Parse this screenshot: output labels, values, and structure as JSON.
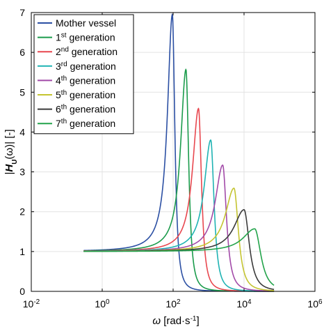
{
  "chart_data": {
    "type": "line",
    "xscale": "log",
    "xlim": [
      0.01,
      1000000
    ],
    "ylim": [
      0,
      7
    ],
    "grid": true,
    "legend_placement": "top-left",
    "xlabel": {
      "symbol": "ω",
      "text": " [rad·s",
      "sup": "-1",
      "close": "]"
    },
    "ylabel": {
      "open": "|",
      "main": "H",
      "sub": "U",
      "rest": "(ω)| [-]"
    },
    "x_tick_labels": [
      {
        "base": "10",
        "exp": "-2",
        "value": 0.01
      },
      {
        "base": "10",
        "exp": "0",
        "value": 1
      },
      {
        "base": "10",
        "exp": "2",
        "value": 100
      },
      {
        "base": "10",
        "exp": "4",
        "value": 10000
      },
      {
        "base": "10",
        "exp": "6",
        "value": 1000000
      }
    ],
    "y_tick_labels": [
      "0",
      "1",
      "2",
      "3",
      "4",
      "5",
      "6",
      "7"
    ],
    "y_ticks": [
      0,
      1,
      2,
      3,
      4,
      5,
      6,
      7
    ],
    "x_range": [
      0.3,
      70000
    ],
    "series": [
      {
        "name": {
          "pre": "Mother vessel",
          "sup": "",
          "post": ""
        },
        "color": "#2b4fa3",
        "peak_x": 95,
        "peak_y": 6.95,
        "width": 0.165
      },
      {
        "name": {
          "pre": "1",
          "sup": "st",
          "post": " generation"
        },
        "color": "#1a9b4b",
        "peak_x": 230,
        "peak_y": 5.57,
        "width": 0.18
      },
      {
        "name": {
          "pre": "2",
          "sup": "nd",
          "post": " generation"
        },
        "color": "#e8474f",
        "peak_x": 520,
        "peak_y": 4.59,
        "width": 0.2
      },
      {
        "name": {
          "pre": "3",
          "sup": "rd",
          "post": " generation"
        },
        "color": "#1fb3b3",
        "peak_x": 1150,
        "peak_y": 3.8,
        "width": 0.22
      },
      {
        "name": {
          "pre": "4",
          "sup": "th",
          "post": " generation"
        },
        "color": "#a24aa8",
        "peak_x": 2500,
        "peak_y": 3.17,
        "width": 0.25
      },
      {
        "name": {
          "pre": "5",
          "sup": "th",
          "post": " generation"
        },
        "color": "#c4c430",
        "peak_x": 5200,
        "peak_y": 2.59,
        "width": 0.29
      },
      {
        "name": {
          "pre": "6",
          "sup": "th",
          "post": " generation"
        },
        "color": "#3a3a3a",
        "peak_x": 10000,
        "peak_y": 2.05,
        "width": 0.34
      },
      {
        "name": {
          "pre": "7",
          "sup": "th",
          "post": " generation"
        },
        "color": "#22a34a",
        "peak_x": 20000,
        "peak_y": 1.57,
        "width": 0.4
      }
    ]
  }
}
